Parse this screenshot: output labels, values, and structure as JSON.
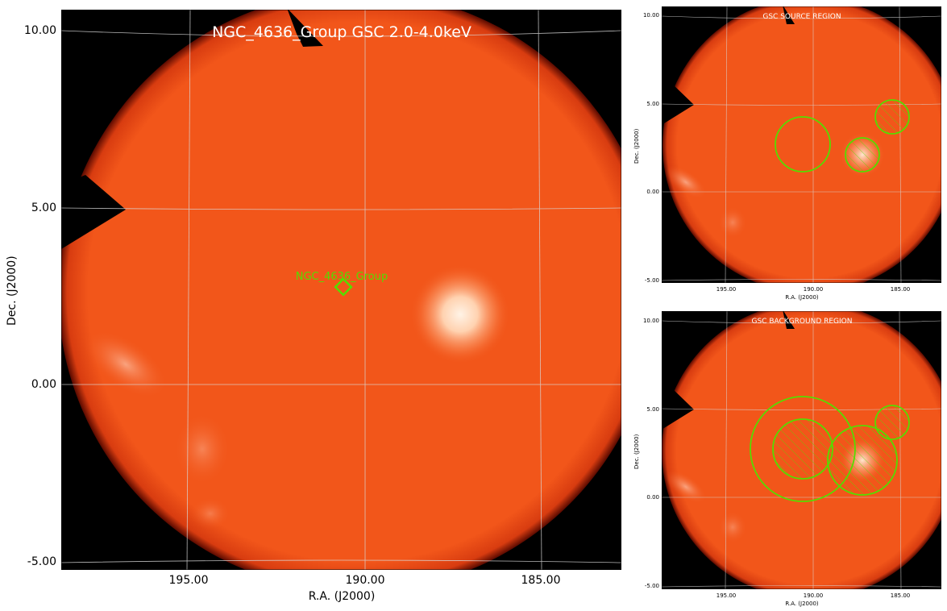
{
  "main": {
    "title": "NGC_4636_Group GSC 2.0-4.0keV",
    "source_label": "NGC_4636_Group",
    "xlabel": "R.A. (J2000)",
    "ylabel": "Dec. (J2000)",
    "xticks": [
      "195.00",
      "190.00",
      "185.00"
    ],
    "yticks": [
      "10.00",
      "5.00",
      "0.00",
      "-5.00"
    ]
  },
  "source_panel": {
    "title": "GSC SOURCE REGION",
    "xlabel": "R.A. (J2000)",
    "ylabel": "Dec. (J2000)",
    "xticks": [
      "195.00",
      "190.00",
      "185.00"
    ],
    "yticks": [
      "10.00",
      "5.00",
      "0.00",
      "-5.00"
    ]
  },
  "background_panel": {
    "title": "GSC BACKGROUND REGION",
    "xlabel": "R.A. (J2000)",
    "ylabel": "Dec. (J2000)",
    "xticks": [
      "195.00",
      "190.00",
      "185.00"
    ],
    "yticks": [
      "10.00",
      "5.00",
      "0.00",
      "-5.00"
    ]
  },
  "colors": {
    "image_background": "#000000",
    "sky_orange": "#f2561a",
    "bright_source": "#ffe8d0",
    "region_green": "#55dd00",
    "grid": "#d8d8d8"
  }
}
